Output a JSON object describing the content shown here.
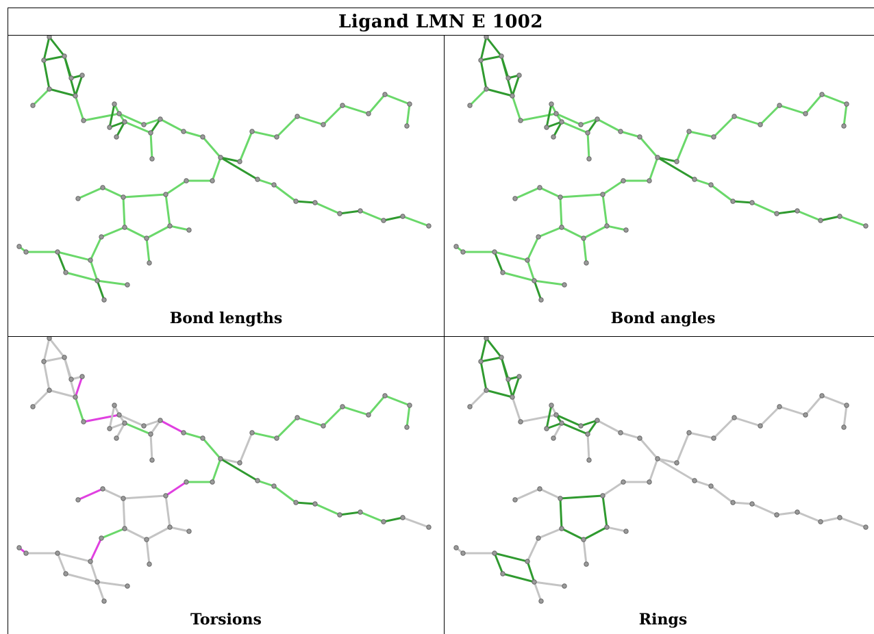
{
  "title": "Ligand LMN E 1002",
  "panels": [
    {
      "caption": "Bond lengths"
    },
    {
      "caption": "Bond angles"
    },
    {
      "caption": "Torsions"
    },
    {
      "caption": "Rings"
    }
  ],
  "colors": {
    "dark_green": "#2f9a2f",
    "light_green": "#6ad86a",
    "magenta": "#e040e0",
    "grey": "#c4c4c4"
  }
}
